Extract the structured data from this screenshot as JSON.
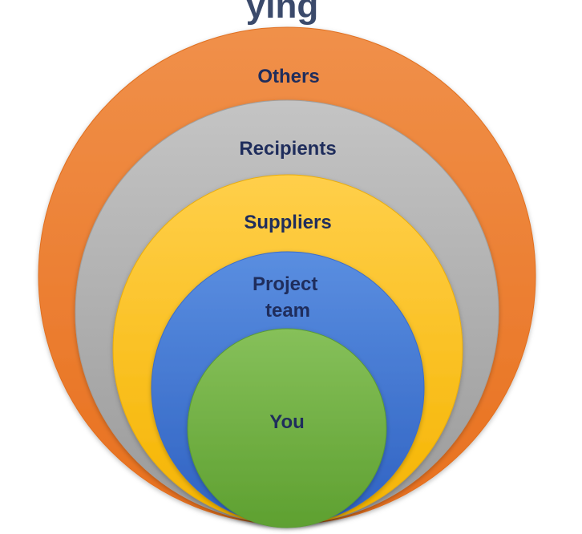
{
  "header": {
    "title_fragment": "ying"
  },
  "diagram": {
    "rings": [
      {
        "id": "others",
        "label": "Others",
        "color_top": "#f0904a",
        "color_bottom": "#e8701e",
        "stroke": "#e07020"
      },
      {
        "id": "recipients",
        "label": "Recipients",
        "color_top": "#c4c4c4",
        "color_bottom": "#9a9a9a",
        "stroke": "#a0a0a0"
      },
      {
        "id": "suppliers",
        "label": "Suppliers",
        "color_top": "#ffcf4a",
        "color_bottom": "#f5b400",
        "stroke": "#e8ad10"
      },
      {
        "id": "project-team",
        "label_lines": [
          "Project",
          "team"
        ],
        "color_top": "#5a8ee0",
        "color_bottom": "#2f62c2",
        "stroke": "#3a6cc8"
      },
      {
        "id": "you",
        "label": "You",
        "color_top": "#86c05a",
        "color_bottom": "#5ea030",
        "stroke": "#5a9a35"
      }
    ]
  }
}
